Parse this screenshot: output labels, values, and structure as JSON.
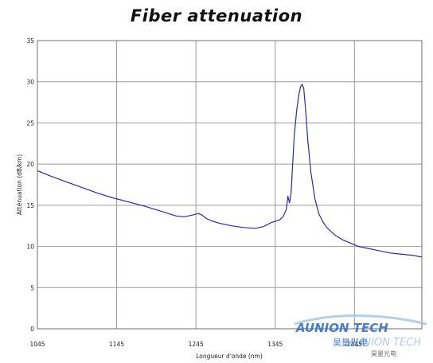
{
  "chart_data": {
    "type": "line",
    "title": "Fiber attenuation",
    "xlabel": "Longueur d'onde (nm)",
    "ylabel": "Atténuation (dB/km)",
    "xlim": [
      1045,
      1530
    ],
    "ylim": [
      0,
      35
    ],
    "x_ticks": [
      "1045",
      "1145",
      "1245",
      "1345",
      "1445"
    ],
    "y_ticks": [
      "0",
      "5",
      "10",
      "15",
      "20",
      "25",
      "30",
      "35"
    ],
    "grid": true,
    "legend": "none",
    "line_color": "#2a2ab0",
    "series": [
      {
        "x": [
          1045,
          1060,
          1080,
          1100,
          1120,
          1140,
          1160,
          1180,
          1200,
          1220,
          1230,
          1240,
          1248,
          1253,
          1258,
          1265,
          1275,
          1290,
          1305,
          1320,
          1330,
          1340,
          1350,
          1355,
          1359,
          1361,
          1363,
          1365,
          1367,
          1369,
          1372,
          1375,
          1377,
          1379,
          1381,
          1383,
          1386,
          1390,
          1395,
          1400,
          1405,
          1410,
          1420,
          1430,
          1440,
          1450,
          1460,
          1470,
          1480,
          1490,
          1500,
          1510,
          1520,
          1530
        ],
        "y": [
          19.2,
          18.6,
          17.9,
          17.2,
          16.5,
          15.9,
          15.4,
          14.9,
          14.3,
          13.7,
          13.6,
          13.8,
          14.0,
          13.8,
          13.4,
          13.1,
          12.8,
          12.5,
          12.3,
          12.2,
          12.4,
          12.9,
          13.2,
          13.6,
          14.5,
          16.1,
          15.3,
          16.5,
          20.0,
          23.5,
          26.5,
          28.5,
          29.4,
          29.7,
          29.2,
          27.0,
          23.0,
          19.0,
          15.8,
          14.0,
          13.0,
          12.3,
          11.4,
          10.8,
          10.4,
          10.0,
          9.8,
          9.6,
          9.4,
          9.2,
          9.1,
          9.0,
          8.9,
          8.7
        ]
      }
    ]
  },
  "watermark": {
    "brand": "AUNION TECH",
    "brand_cn": "昊量光电",
    "color": "#2a68c8"
  }
}
